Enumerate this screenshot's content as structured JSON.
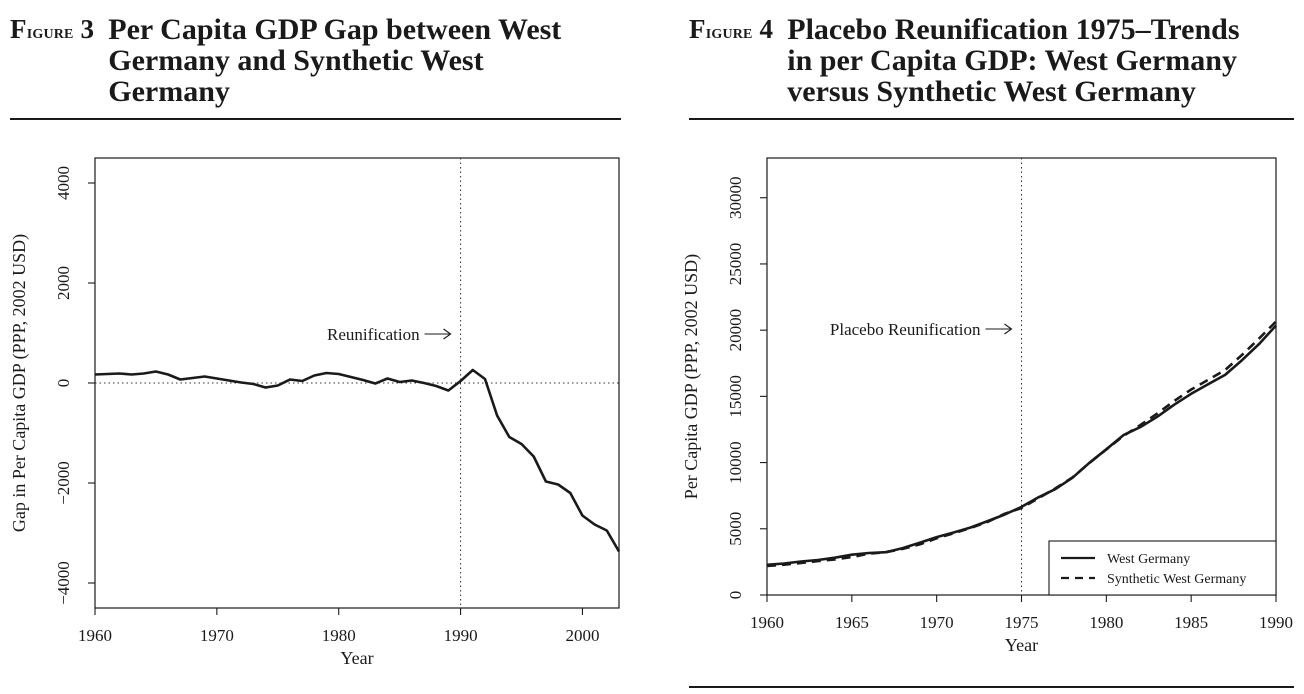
{
  "figure3": {
    "label": "Figure 3",
    "title": "Per Capita GDP Gap between West Germany and Synthetic West Germany"
  },
  "figure4": {
    "label": "Figure 4",
    "title": "Placebo Reunification 1975–Trends in per Capita GDP: West Germany versus Synthetic West Germany"
  },
  "chart_data": [
    {
      "type": "line",
      "xlabel": "Year",
      "ylabel": "Gap in Per Capita GDP (PPP, 2002 USD)",
      "xlim": [
        1960,
        2003
      ],
      "ylim": [
        -4500,
        4500
      ],
      "x_ticks": [
        1960,
        1970,
        1980,
        1990,
        2000
      ],
      "y_ticks": [
        -4000,
        -2000,
        0,
        2000,
        4000
      ],
      "annotation": "Reunification",
      "vline_x": 1990,
      "hline_y": 0,
      "grid": false,
      "series": [
        {
          "x": [
            1960,
            1961,
            1962,
            1963,
            1964,
            1965,
            1966,
            1967,
            1968,
            1969,
            1970,
            1971,
            1972,
            1973,
            1974,
            1975,
            1976,
            1977,
            1978,
            1979,
            1980,
            1981,
            1982,
            1983,
            1984,
            1985,
            1986,
            1987,
            1988,
            1989,
            1990,
            1991,
            1992,
            1993,
            1994,
            1995,
            1996,
            1997,
            1998,
            1999,
            2000,
            2001,
            2002,
            2003
          ],
          "y": [
            170,
            180,
            190,
            170,
            190,
            230,
            170,
            70,
            100,
            130,
            90,
            50,
            10,
            -20,
            -90,
            -50,
            70,
            40,
            150,
            200,
            180,
            120,
            60,
            -10,
            90,
            20,
            50,
            0,
            -60,
            -150,
            40,
            260,
            80,
            -650,
            -1080,
            -1220,
            -1470,
            -1970,
            -2030,
            -2200,
            -2650,
            -2830,
            -2950,
            -3370
          ]
        }
      ]
    },
    {
      "type": "line",
      "xlabel": "Year",
      "ylabel": "Per Capita GDP (PPP, 2002 USD)",
      "xlim": [
        1960,
        1990
      ],
      "ylim": [
        0,
        33000
      ],
      "x_ticks": [
        1960,
        1965,
        1970,
        1975,
        1980,
        1985,
        1990
      ],
      "y_ticks": [
        0,
        5000,
        10000,
        15000,
        20000,
        25000,
        30000
      ],
      "annotation": "Placebo Reunification",
      "vline_x": 1975,
      "grid": false,
      "legend_position": "bottom-right",
      "series": [
        {
          "name": "West Germany",
          "style": "solid",
          "x": [
            1960,
            1961,
            1962,
            1963,
            1964,
            1965,
            1966,
            1967,
            1968,
            1969,
            1970,
            1971,
            1972,
            1973,
            1974,
            1975,
            1976,
            1977,
            1978,
            1979,
            1980,
            1981,
            1982,
            1983,
            1984,
            1985,
            1986,
            1987,
            1988,
            1989,
            1990
          ],
          "y": [
            2280,
            2380,
            2530,
            2640,
            2820,
            3040,
            3170,
            3230,
            3540,
            3940,
            4370,
            4720,
            5100,
            5580,
            6070,
            6650,
            7380,
            8000,
            8850,
            9980,
            11000,
            12070,
            12680,
            13460,
            14370,
            15190,
            15920,
            16620,
            17740,
            18950,
            20350
          ]
        },
        {
          "name": "Synthetic West Germany",
          "style": "dashed",
          "x": [
            1960,
            1961,
            1962,
            1963,
            1964,
            1965,
            1966,
            1967,
            1968,
            1969,
            1970,
            1971,
            1972,
            1973,
            1974,
            1975,
            1976,
            1977,
            1978,
            1979,
            1980,
            1981,
            1982,
            1983,
            1984,
            1985,
            1986,
            1987,
            1988,
            1989,
            1990
          ],
          "y": [
            2200,
            2290,
            2420,
            2560,
            2690,
            2860,
            3120,
            3230,
            3480,
            3820,
            4280,
            4660,
            5060,
            5520,
            6130,
            6570,
            7320,
            8050,
            8870,
            9970,
            10990,
            12010,
            12830,
            13700,
            14650,
            15520,
            16240,
            16990,
            18140,
            19360,
            20650
          ]
        }
      ]
    }
  ]
}
